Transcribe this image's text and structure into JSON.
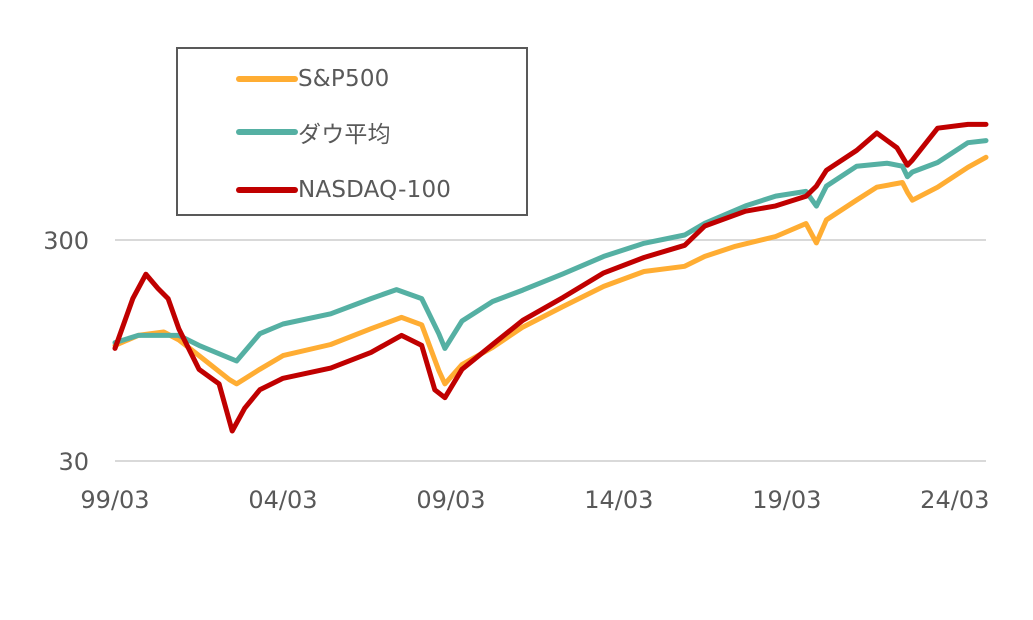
{
  "chart_data": {
    "type": "line",
    "title": "",
    "xlabel": "",
    "ylabel": "",
    "y_scale": "log",
    "ylim": [
      30,
      1000
    ],
    "yticks": [
      30,
      300
    ],
    "ytick_labels": [
      "30",
      "300"
    ],
    "x_tick_labels": [
      "99/03",
      "04/03",
      "09/03",
      "14/03",
      "19/03",
      "24/03"
    ],
    "x_tick_years": [
      1999.17,
      2004.17,
      2009.17,
      2014.17,
      2019.17,
      2024.17
    ],
    "xlim": [
      1999.17,
      2025.1
    ],
    "grid": {
      "horizontal": true,
      "vertical": false,
      "color": "#d9d9d9"
    },
    "legend": {
      "position": "upper-left",
      "boxed": true
    },
    "series": [
      {
        "name": "S&P500",
        "color": "#ffad33",
        "x": [
          1999.17,
          1999.86,
          2000.62,
          2001.07,
          2001.67,
          2002.58,
          2002.79,
          2003.48,
          2004.17,
          2005.59,
          2006.79,
          2007.7,
          2008.3,
          2008.81,
          2008.99,
          2009.5,
          2010.41,
          2011.31,
          2012.51,
          2013.72,
          2014.92,
          2016.13,
          2016.73,
          2017.64,
          2018.84,
          2019.74,
          2020.05,
          2020.35,
          2021.25,
          2021.85,
          2022.61,
          2022.76,
          2022.91,
          2023.66,
          2024.56,
          2025.1
        ],
        "values": [
          100,
          111,
          115,
          106,
          90,
          70,
          67,
          78,
          90,
          101,
          119,
          134,
          124,
          77,
          67,
          82,
          98,
          121,
          150,
          185,
          216,
          228,
          253,
          281,
          311,
          356,
          291,
          370,
          455,
          520,
          546,
          493,
          454,
          520,
          640,
          710
        ]
      },
      {
        "name": "ダウ平均",
        "color": "#55b0a3",
        "x": [
          1999.17,
          1999.86,
          2000.62,
          2001.07,
          2001.67,
          2002.79,
          2003.48,
          2004.17,
          2005.59,
          2006.79,
          2007.55,
          2008.3,
          2008.81,
          2008.99,
          2009.5,
          2010.41,
          2011.31,
          2012.51,
          2013.72,
          2014.92,
          2016.13,
          2016.73,
          2017.94,
          2018.84,
          2019.74,
          2020.05,
          2020.35,
          2021.25,
          2022.15,
          2022.61,
          2022.76,
          2022.91,
          2023.66,
          2024.56,
          2025.1
        ],
        "values": [
          103,
          111,
          111,
          111,
          100,
          85,
          113,
          125,
          139,
          163,
          179,
          163,
          113,
          97,
          129,
          158,
          178,
          211,
          253,
          290,
          316,
          357,
          428,
          474,
          498,
          427,
          526,
          647,
          668,
          647,
          580,
          609,
          673,
          827,
          845
        ]
      },
      {
        "name": "NASDAQ-100",
        "color": "#c00000",
        "x": [
          1999.17,
          1999.7,
          2000.09,
          2000.45,
          2000.75,
          2001.07,
          2001.67,
          2002.27,
          2002.66,
          2003.03,
          2003.48,
          2004.17,
          2005.59,
          2006.79,
          2007.7,
          2008.3,
          2008.69,
          2008.99,
          2009.5,
          2010.41,
          2011.31,
          2012.51,
          2013.72,
          2014.92,
          2016.13,
          2016.73,
          2017.94,
          2018.84,
          2019.74,
          2020.05,
          2020.35,
          2021.25,
          2021.85,
          2022.45,
          2022.76,
          2022.91,
          2023.66,
          2024.56,
          2024.86,
          2025.1
        ],
        "values": [
          97,
          163,
          210,
          181,
          163,
          119,
          78,
          67,
          41,
          52,
          63,
          71,
          79,
          93,
          111,
          100,
          63,
          58,
          78,
          101,
          130,
          165,
          213,
          250,
          284,
          347,
          405,
          428,
          473,
          526,
          620,
          763,
          915,
          784,
          654,
          690,
          962,
          1000,
          1000,
          1000
        ]
      }
    ]
  },
  "legend": {
    "items": [
      {
        "label": "S&P500",
        "color": "#ffad33"
      },
      {
        "label": "ダウ平均",
        "color": "#55b0a3"
      },
      {
        "label": "NASDAQ-100",
        "color": "#c00000"
      }
    ]
  }
}
